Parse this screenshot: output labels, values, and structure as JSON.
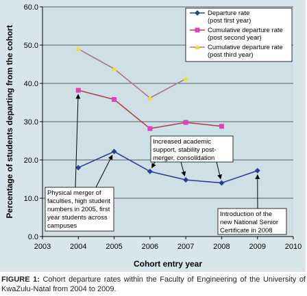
{
  "chart_data": {
    "type": "line",
    "xlabel": "Cohort entry year",
    "ylabel": "Percentage of students departing from the cohort",
    "xlim": [
      2003,
      2010
    ],
    "ylim": [
      0,
      60
    ],
    "x_ticks": [
      "2003",
      "2004",
      "2005",
      "2006",
      "2007",
      "2008",
      "2009",
      "2010"
    ],
    "y_ticks": [
      "0.0",
      "10.0",
      "20.0",
      "30.0",
      "40.0",
      "50.0",
      "60.0"
    ],
    "grid": "horizontal",
    "legend_position": "top-right",
    "series": [
      {
        "name": "Departure rate (post first year)",
        "legend_lines": [
          "Departure rate",
          "(post first year)"
        ],
        "line_color": "#2b3f8f",
        "marker_color": "#2b3f8f",
        "marker": "diamond",
        "x": [
          2004,
          2005,
          2006,
          2007,
          2008,
          2009
        ],
        "values": [
          18.0,
          22.2,
          17.0,
          14.8,
          14.0,
          17.2
        ]
      },
      {
        "name": "Cumulative departure rate (post second year)",
        "legend_lines": [
          "Cumulative departure rate",
          "(post second year)"
        ],
        "line_color": "#b24040",
        "marker_color": "#e040c0",
        "marker": "square",
        "x": [
          2004,
          2005,
          2006,
          2007,
          2008
        ],
        "values": [
          38.2,
          35.8,
          28.2,
          29.8,
          28.8
        ]
      },
      {
        "name": "Cumulative departure rate (post third year)",
        "legend_lines": [
          "Cumulative departure rate",
          "(post third year)"
        ],
        "line_color": "#a87880",
        "marker_color": "#f0e030",
        "marker": "triangle",
        "x": [
          2004,
          2005,
          2006,
          2007
        ],
        "values": [
          49.0,
          43.8,
          36.2,
          41.2
        ]
      }
    ],
    "annotations": [
      {
        "id": "merger",
        "lines": [
          "Physical merger of",
          "faculties, high student",
          "numbers in 2005, first",
          "year students across",
          "campuses"
        ],
        "arrow_targets": [
          [
            2004,
            38.2
          ],
          [
            2005,
            22.2
          ]
        ]
      },
      {
        "id": "support",
        "lines": [
          "Increased academic",
          "support, stability post-",
          "merger, consolidation"
        ],
        "arrow_targets": [
          [
            2006,
            17.0
          ],
          [
            2007,
            14.8
          ],
          [
            2008,
            14.0
          ]
        ]
      },
      {
        "id": "nsc",
        "lines": [
          "Introduction of the",
          "new National Senior",
          "Certificate in 2008"
        ],
        "arrow_targets": [
          [
            2009,
            17.2
          ]
        ]
      }
    ]
  },
  "caption": {
    "label": "FIGURE 1:",
    "text": " Cohort departure rates within the Faculty of Engineering of the University of KwaZulu-Natal from 2004 to 2009."
  }
}
